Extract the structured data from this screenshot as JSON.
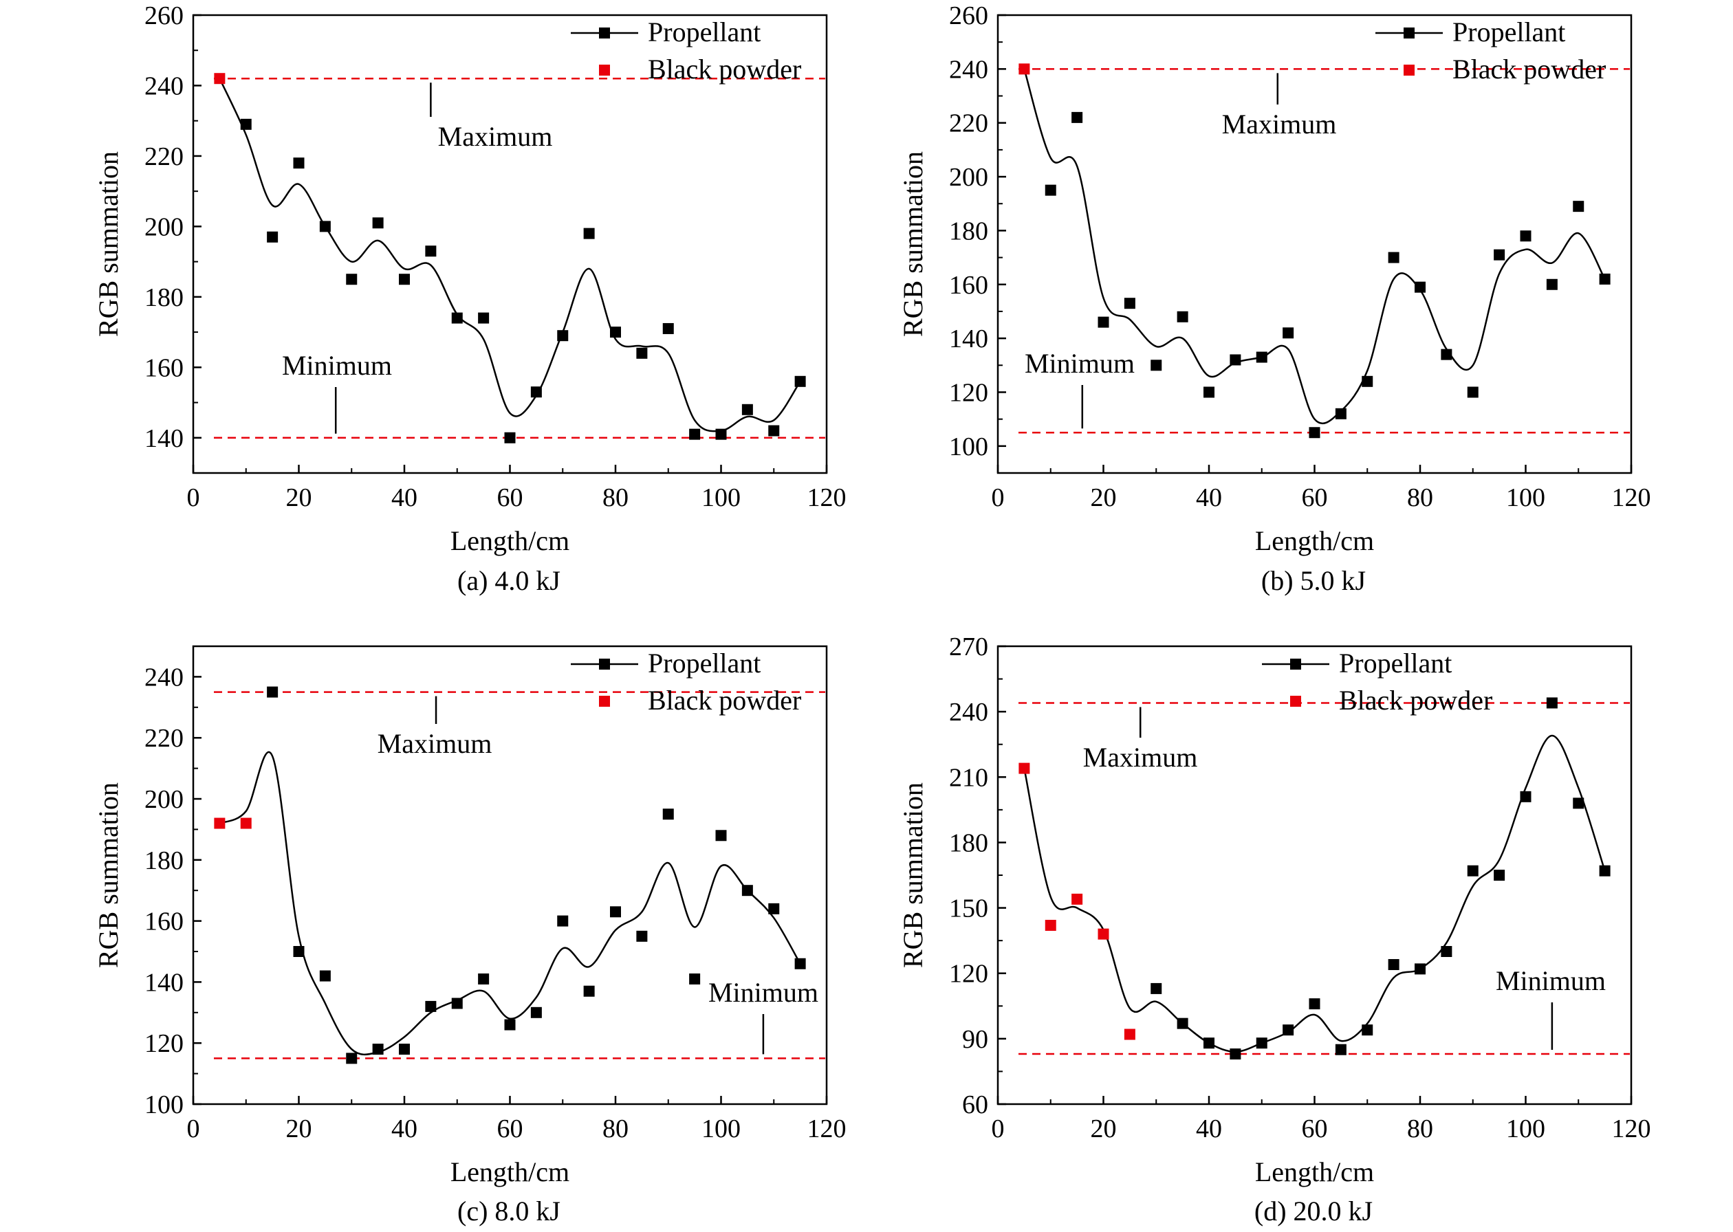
{
  "figure": {
    "panel_captions": [
      "(a) 4.0 kJ",
      "(b) 5.0 kJ",
      "(c) 8.0 kJ",
      "(d) 20.0 kJ"
    ]
  },
  "colors": {
    "propellant": "#000000",
    "black_powder": "#e8000b",
    "reference_line": "#e8000b",
    "axis": "#000000"
  },
  "chart_data": [
    {
      "type": "scatter",
      "caption": "(a) 4.0 kJ",
      "xlabel": "Length/cm",
      "ylabel": "RGB summation",
      "xlim": [
        0,
        120
      ],
      "ylim": [
        130,
        260
      ],
      "xticks": [
        0,
        20,
        40,
        60,
        80,
        100,
        120
      ],
      "yticks": [
        140,
        160,
        180,
        200,
        220,
        240,
        260
      ],
      "legend": {
        "position": "top-right",
        "entries": [
          "Propellant",
          "Black powder"
        ]
      },
      "series": [
        {
          "name": "Propellant",
          "style": "square markers with smooth fitted curve",
          "x": [
            10,
            15,
            20,
            25,
            30,
            35,
            40,
            45,
            50,
            55,
            60,
            65,
            70,
            75,
            80,
            85,
            90,
            95,
            100,
            105,
            110,
            115
          ],
          "y": [
            229,
            197,
            218,
            200,
            185,
            201,
            185,
            193,
            174,
            174,
            140,
            153,
            169,
            198,
            170,
            164,
            171,
            141,
            141,
            148,
            142,
            156
          ]
        },
        {
          "name": "Black powder",
          "style": "square markers",
          "x": [
            5
          ],
          "y": [
            242
          ]
        }
      ],
      "fitted_curve": {
        "x": [
          5,
          10,
          15,
          20,
          25,
          30,
          35,
          40,
          45,
          50,
          55,
          60,
          65,
          70,
          75,
          80,
          85,
          90,
          95,
          100,
          105,
          110,
          115
        ],
        "y": [
          242,
          226,
          206,
          212,
          200,
          190,
          196,
          188,
          189,
          175,
          168,
          147,
          152,
          170,
          188,
          168,
          166,
          164,
          145,
          142,
          146,
          145,
          156
        ]
      },
      "reference_lines": [
        {
          "label": "Maximum",
          "y": 242
        },
        {
          "label": "Minimum",
          "y": 140
        }
      ]
    },
    {
      "type": "scatter",
      "caption": "(b) 5.0 kJ",
      "xlabel": "Length/cm",
      "ylabel": "RGB summation",
      "xlim": [
        0,
        120
      ],
      "ylim": [
        90,
        260
      ],
      "xticks": [
        0,
        20,
        40,
        60,
        80,
        100,
        120
      ],
      "yticks": [
        100,
        120,
        140,
        160,
        180,
        200,
        220,
        240,
        260
      ],
      "legend": {
        "position": "top-right",
        "entries": [
          "Propellant",
          "Black powder"
        ]
      },
      "series": [
        {
          "name": "Propellant",
          "style": "square markers with smooth fitted curve",
          "x": [
            10,
            15,
            20,
            25,
            30,
            35,
            40,
            45,
            50,
            55,
            60,
            65,
            70,
            75,
            80,
            85,
            90,
            95,
            100,
            105,
            110,
            115
          ],
          "y": [
            195,
            222,
            146,
            153,
            130,
            148,
            120,
            132,
            133,
            142,
            105,
            112,
            124,
            170,
            159,
            134,
            120,
            171,
            178,
            160,
            189,
            162
          ]
        },
        {
          "name": "Black powder",
          "style": "square markers",
          "x": [
            5
          ],
          "y": [
            240
          ]
        }
      ],
      "fitted_curve": {
        "x": [
          5,
          10,
          15,
          20,
          25,
          30,
          35,
          40,
          45,
          50,
          55,
          60,
          65,
          70,
          75,
          80,
          85,
          90,
          95,
          100,
          105,
          110,
          115
        ],
        "y": [
          240,
          207,
          204,
          155,
          147,
          137,
          140,
          126,
          131,
          133,
          136,
          110,
          113,
          128,
          162,
          158,
          136,
          130,
          164,
          173,
          168,
          179,
          162
        ]
      },
      "reference_lines": [
        {
          "label": "Maximum",
          "y": 240
        },
        {
          "label": "Minimum",
          "y": 105
        }
      ]
    },
    {
      "type": "scatter",
      "caption": "(c) 8.0 kJ",
      "xlabel": "Length/cm",
      "ylabel": "RGB summation",
      "xlim": [
        0,
        120
      ],
      "ylim": [
        100,
        250
      ],
      "xticks": [
        0,
        20,
        40,
        60,
        80,
        100,
        120
      ],
      "yticks": [
        100,
        120,
        140,
        160,
        180,
        200,
        220,
        240
      ],
      "legend": {
        "position": "top-right",
        "entries": [
          "Propellant",
          "Black powder"
        ]
      },
      "series": [
        {
          "name": "Propellant",
          "style": "square markers with smooth fitted curve",
          "x": [
            15,
            20,
            25,
            30,
            35,
            40,
            45,
            50,
            55,
            60,
            65,
            70,
            75,
            80,
            85,
            90,
            95,
            100,
            105,
            110,
            115
          ],
          "y": [
            235,
            150,
            142,
            115,
            118,
            118,
            132,
            133,
            141,
            126,
            130,
            160,
            137,
            163,
            155,
            195,
            141,
            188,
            170,
            164,
            146
          ]
        },
        {
          "name": "Black powder",
          "style": "square markers",
          "x": [
            5,
            10
          ],
          "y": [
            192,
            192
          ]
        }
      ],
      "fitted_curve": {
        "x": [
          5,
          10,
          15,
          20,
          25,
          30,
          35,
          40,
          45,
          50,
          55,
          60,
          65,
          70,
          75,
          80,
          85,
          90,
          95,
          100,
          105,
          110,
          115
        ],
        "y": [
          192,
          196,
          214,
          155,
          133,
          118,
          117,
          122,
          130,
          134,
          137,
          128,
          135,
          151,
          145,
          157,
          163,
          179,
          158,
          178,
          170,
          161,
          146
        ]
      },
      "reference_lines": [
        {
          "label": "Maximum",
          "y": 235
        },
        {
          "label": "Minimum",
          "y": 115
        }
      ]
    },
    {
      "type": "scatter",
      "caption": "(d) 20.0 kJ",
      "xlabel": "Length/cm",
      "ylabel": "RGB summation",
      "xlim": [
        0,
        120
      ],
      "ylim": [
        60,
        270
      ],
      "xticks": [
        0,
        20,
        40,
        60,
        80,
        100,
        120
      ],
      "yticks": [
        60,
        90,
        120,
        150,
        180,
        210,
        240,
        270
      ],
      "legend": {
        "position": "top-right",
        "entries": [
          "Propellant",
          "Black powder"
        ]
      },
      "series": [
        {
          "name": "Propellant",
          "style": "square markers with smooth fitted curve",
          "x": [
            30,
            35,
            40,
            45,
            50,
            55,
            60,
            65,
            70,
            75,
            80,
            85,
            90,
            95,
            100,
            105,
            110,
            115
          ],
          "y": [
            113,
            97,
            88,
            83,
            88,
            94,
            106,
            85,
            94,
            124,
            122,
            130,
            167,
            165,
            201,
            244,
            198,
            167
          ]
        },
        {
          "name": "Black powder",
          "style": "square markers",
          "x": [
            5,
            10,
            15,
            20,
            25
          ],
          "y": [
            214,
            142,
            154,
            138,
            92
          ]
        }
      ],
      "fitted_curve": {
        "x": [
          5,
          10,
          15,
          20,
          25,
          30,
          35,
          40,
          45,
          50,
          55,
          60,
          65,
          70,
          75,
          80,
          85,
          90,
          95,
          100,
          105,
          110,
          115
        ],
        "y": [
          214,
          155,
          150,
          140,
          104,
          107,
          97,
          88,
          84,
          88,
          93,
          101,
          89,
          97,
          118,
          122,
          134,
          160,
          172,
          205,
          229,
          205,
          167
        ]
      },
      "reference_lines": [
        {
          "label": "Maximum",
          "y": 244
        },
        {
          "label": "Minimum",
          "y": 83
        }
      ]
    }
  ]
}
